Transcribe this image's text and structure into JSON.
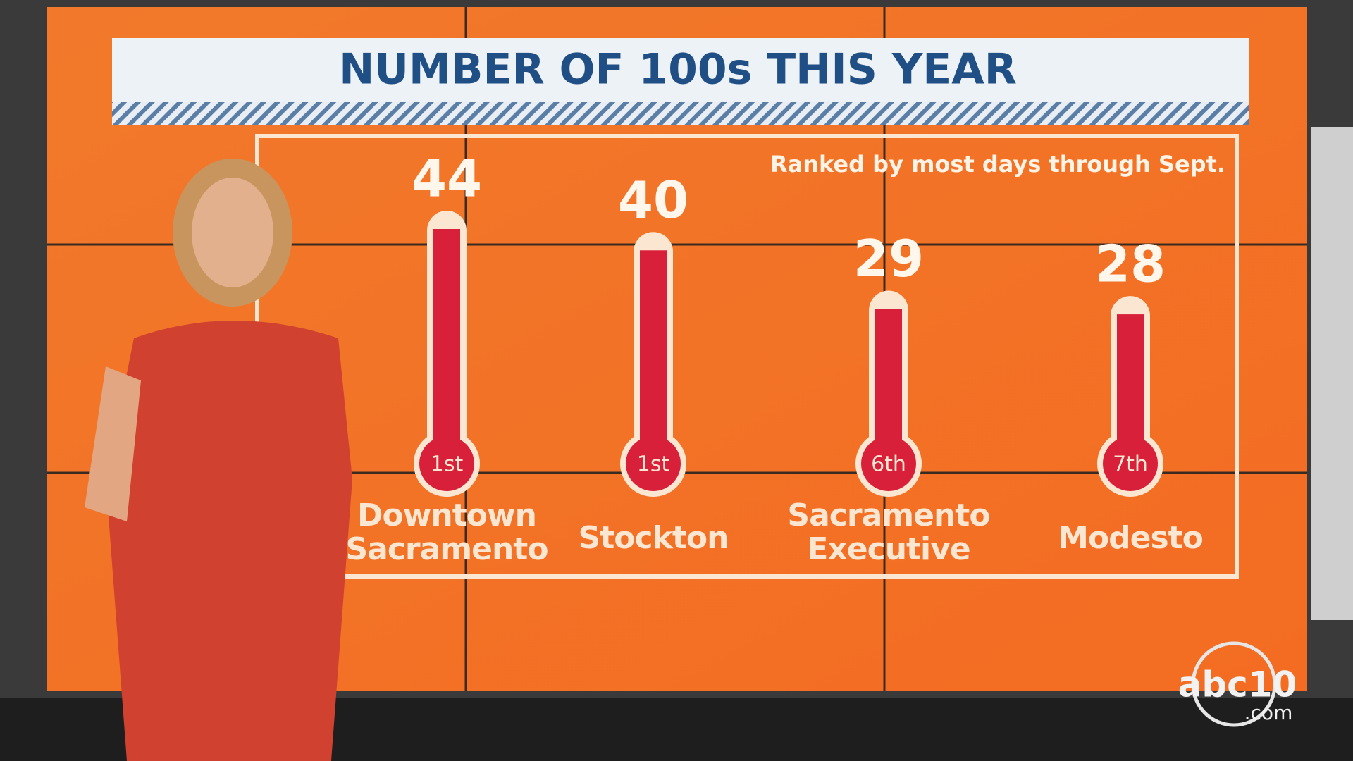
{
  "chart_data": {
    "type": "thermometer",
    "title": "NUMBER OF 100s THIS YEAR",
    "subtitle": "Ranked by most days through Sept.",
    "categories": [
      "Downtown Sacramento",
      "Stockton",
      "Sacramento Executive",
      "Modesto"
    ],
    "values": [
      44,
      40,
      29,
      28
    ],
    "rank_labels": [
      "1st",
      "1st",
      "6th",
      "7th"
    ],
    "color": "#d8203a"
  },
  "logo": {
    "brand": "abc10",
    "suffix": ".com"
  }
}
